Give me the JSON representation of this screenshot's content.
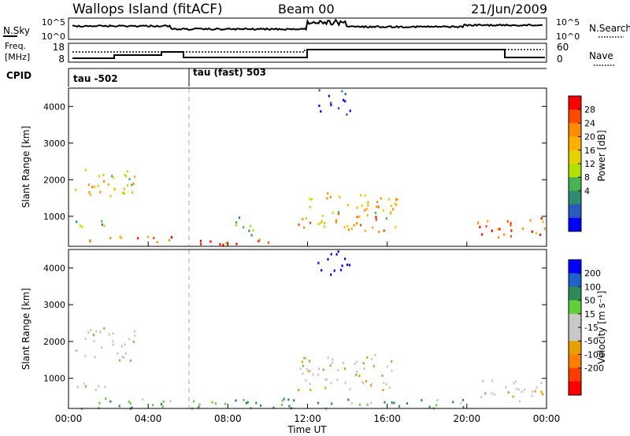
{
  "header": {
    "title_left": "Wallops Island (fitACF)",
    "title_center": "Beam 00",
    "title_right": "21/Jun/2009"
  },
  "top_panel": {
    "left_label": "N.Sky",
    "right_label": "N.Search",
    "left_ticks": [
      "10^5",
      "10^0"
    ],
    "right_ticks": [
      "10^5",
      "10^0"
    ]
  },
  "freq_panel": {
    "left_label_line1": "Freq.",
    "left_label_line2": "[MHz]",
    "right_label": "Nave",
    "left_ticks": [
      "18",
      "8"
    ],
    "right_ticks": [
      "60",
      "0"
    ]
  },
  "cpid": {
    "label": "CPID",
    "segments": [
      {
        "text": "tau -502",
        "start_hour": 0
      },
      {
        "text": "tau (fast) 503",
        "start_hour": 6
      }
    ]
  },
  "colorbars": {
    "power": {
      "label": "Power [dB]",
      "ticks": [
        "28",
        "24",
        "20",
        "16",
        "12",
        "8",
        "4"
      ],
      "colors": [
        "#ff0000",
        "#ff4a00",
        "#ff8c00",
        "#ffb000",
        "#e6d200",
        "#b4e000",
        "#46b450",
        "#2e8b6f",
        "#2a5cbf",
        "#0000ff"
      ]
    },
    "velocity": {
      "label": "Velocity [m s⁻¹]",
      "ticks": [
        "200",
        "100",
        "50",
        "15",
        "-15",
        "-50",
        "-100",
        "-200"
      ],
      "colors": [
        "#0000ff",
        "#1e64c8",
        "#2e8b57",
        "#5fcf3a",
        "#c8c8c8",
        "#c8c8c8",
        "#e6a000",
        "#ff7f00",
        "#ff3c00",
        "#ff0000"
      ]
    }
  },
  "chart_data": [
    {
      "type": "heatmap",
      "title": "",
      "ylabel": "Slant Range [km]",
      "xlabel": "",
      "xlim": [
        0,
        24
      ],
      "ylim": [
        180,
        4500
      ],
      "yticks": [
        "4000",
        "3000",
        "2000",
        "1000"
      ],
      "ytick_values": [
        4000,
        3000,
        2000,
        1000
      ],
      "quantity": "Power [dB]",
      "features": [
        {
          "t0": 0.3,
          "t1": 3.3,
          "r0": 1500,
          "r1": 2400,
          "v": 18
        },
        {
          "t0": 0.2,
          "t1": 2.0,
          "r0": 600,
          "r1": 900,
          "v": 12
        },
        {
          "t0": 1.0,
          "t1": 6.0,
          "r0": 300,
          "r1": 500,
          "v": 22
        },
        {
          "t0": 6.0,
          "t1": 11.0,
          "r0": 250,
          "r1": 450,
          "v": 26
        },
        {
          "t0": 8.0,
          "t1": 9.5,
          "r0": 500,
          "r1": 1000,
          "v": 12
        },
        {
          "t0": 11.5,
          "t1": 16.5,
          "r0": 700,
          "r1": 1700,
          "v": 18
        },
        {
          "t0": 14.0,
          "t1": 16.0,
          "r0": 600,
          "r1": 1100,
          "v": 26
        },
        {
          "t0": 20.5,
          "t1": 24.0,
          "r0": 400,
          "r1": 1000,
          "v": 24
        },
        {
          "t0": 12.5,
          "t1": 14.2,
          "r0": 3800,
          "r1": 4500,
          "v": 4
        }
      ]
    },
    {
      "type": "heatmap",
      "title": "",
      "ylabel": "Slant Range [km]",
      "xlabel": "Time UT",
      "xlim": [
        0,
        24
      ],
      "ylim": [
        180,
        4500
      ],
      "xticks": [
        "00:00",
        "04:00",
        "08:00",
        "12:00",
        "16:00",
        "20:00",
        "00:00"
      ],
      "xtick_values": [
        0,
        4,
        8,
        12,
        16,
        20,
        24
      ],
      "yticks": [
        "4000",
        "3000",
        "2000",
        "1000"
      ],
      "ytick_values": [
        4000,
        3000,
        2000,
        1000
      ],
      "quantity": "Velocity [m s⁻¹]",
      "features": [
        {
          "t0": 0.3,
          "t1": 3.3,
          "r0": 1500,
          "r1": 2400,
          "v": 0
        },
        {
          "t0": 0.2,
          "t1": 2.0,
          "r0": 600,
          "r1": 900,
          "v": 0
        },
        {
          "t0": 0.5,
          "t1": 12.0,
          "r0": 200,
          "r1": 500,
          "v": 30
        },
        {
          "t0": 11.5,
          "t1": 16.5,
          "r0": 700,
          "r1": 1700,
          "v": 0
        },
        {
          "t0": 12.0,
          "t1": 20.0,
          "r0": 200,
          "r1": 450,
          "v": 30
        },
        {
          "t0": 20.5,
          "t1": 24.0,
          "r0": 400,
          "r1": 1000,
          "v": 0
        },
        {
          "t0": 12.5,
          "t1": 14.2,
          "r0": 3800,
          "r1": 4500,
          "v": 200
        }
      ]
    }
  ]
}
